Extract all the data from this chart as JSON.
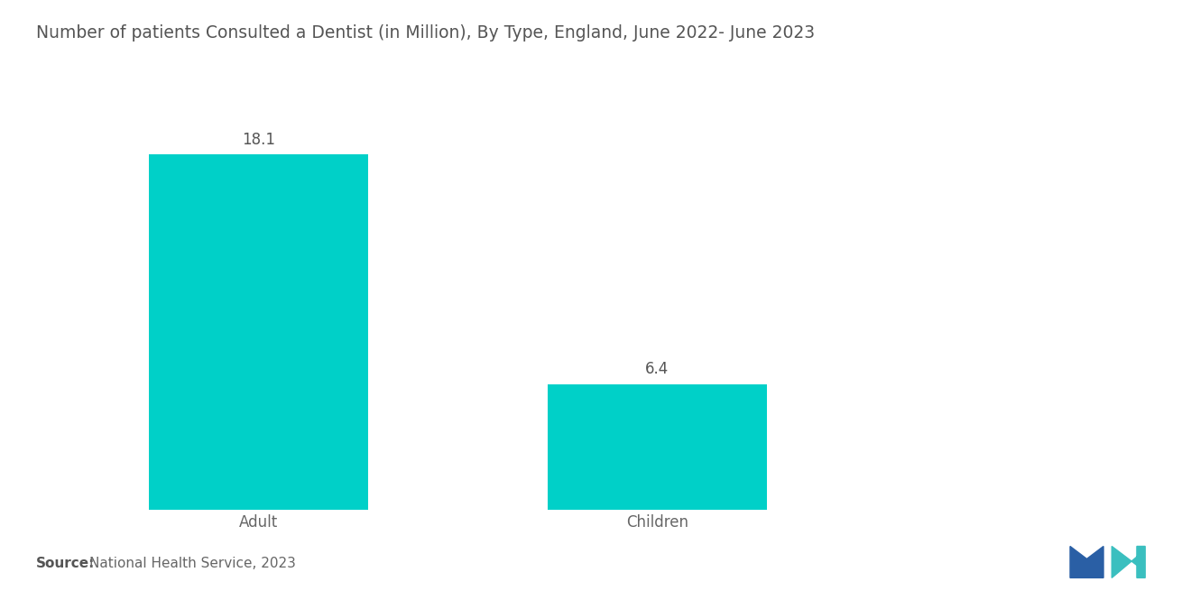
{
  "title": "Number of patients Consulted a Dentist (in Million), By Type, England, June 2022- June 2023",
  "categories": [
    "Adult",
    "Children"
  ],
  "values": [
    18.1,
    6.4
  ],
  "bar_color": "#00D0C8",
  "bar_positions": [
    1,
    3
  ],
  "bar_width": 1.1,
  "xlim": [
    0,
    5.5
  ],
  "ylim": [
    0,
    22
  ],
  "value_labels": [
    "18.1",
    "6.4"
  ],
  "source_bold": "Source:",
  "source_text": "National Health Service, 2023",
  "source_fontsize": 11,
  "title_fontsize": 13.5,
  "label_fontsize": 12,
  "value_fontsize": 12,
  "background_color": "#ffffff",
  "label_color": "#666666",
  "text_color": "#555555"
}
